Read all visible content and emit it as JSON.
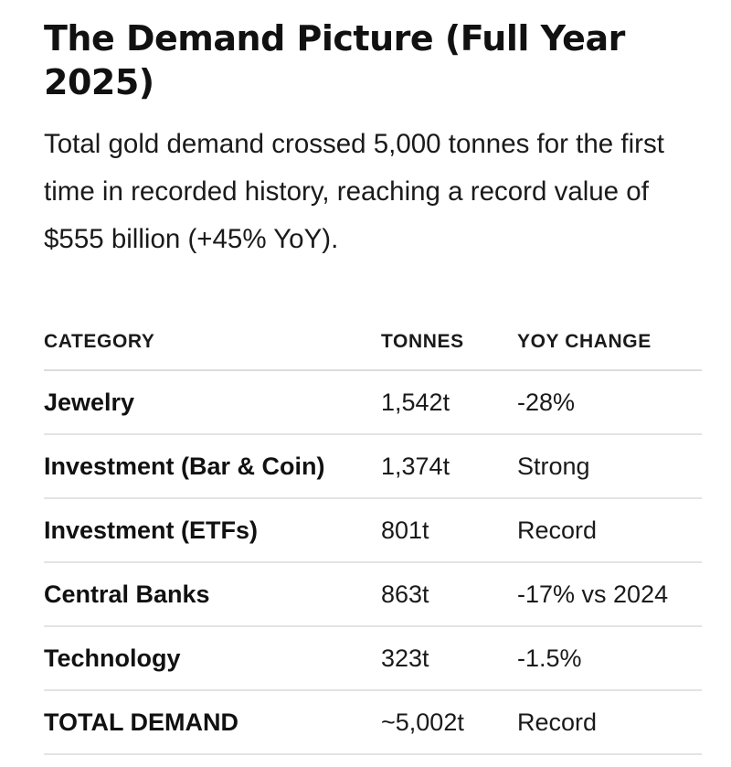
{
  "article": {
    "title": "The Demand Picture (Full Year 2025)",
    "lede": "Total gold demand crossed 5,000 tonnes for the first time in recorded history, reaching a record value of $555 billion (+45% YoY)."
  },
  "table": {
    "headers": {
      "category": "CATEGORY",
      "tonnes": "TONNES",
      "yoy": "YOY CHANGE"
    },
    "rows": [
      {
        "category": "Jewelry",
        "tonnes": "1,542t",
        "yoy": "-28%"
      },
      {
        "category": "Investment (Bar & Coin)",
        "tonnes": "1,374t",
        "yoy": "Strong"
      },
      {
        "category": "Investment (ETFs)",
        "tonnes": "801t",
        "yoy": "Record"
      },
      {
        "category": "Central Banks",
        "tonnes": "863t",
        "yoy": "-17% vs 2024"
      },
      {
        "category": "Technology",
        "tonnes": "323t",
        "yoy": "-1.5%"
      },
      {
        "category": "TOTAL DEMAND",
        "tonnes": "~5,002t",
        "yoy": "Record"
      }
    ]
  }
}
